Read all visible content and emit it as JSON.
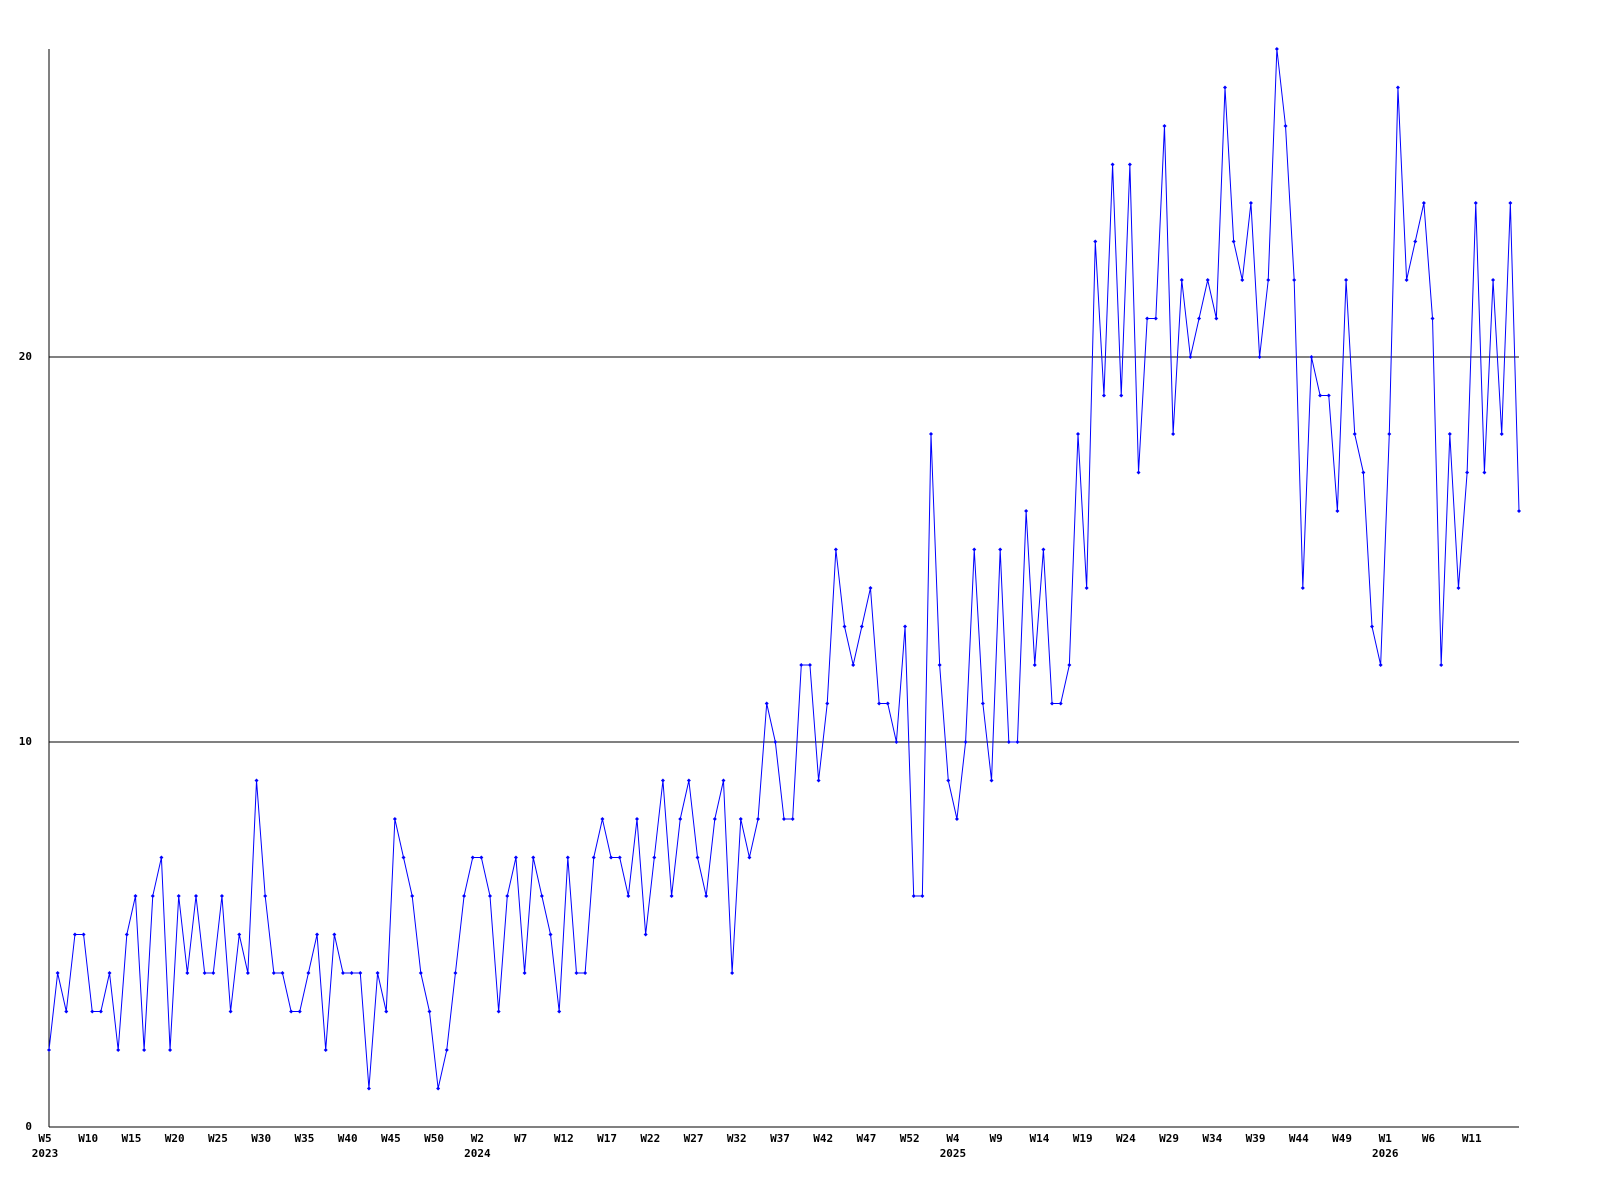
{
  "chart_data": {
    "type": "line",
    "color": "#0000ff",
    "ylim": [
      0,
      28
    ],
    "yticks": [
      0,
      10,
      20
    ],
    "grid": true,
    "categories": [
      "W5",
      null,
      null,
      null,
      null,
      "W10",
      null,
      null,
      null,
      null,
      "W15",
      null,
      null,
      null,
      null,
      "W20",
      null,
      null,
      null,
      null,
      "W25",
      null,
      null,
      null,
      null,
      "W30",
      null,
      null,
      null,
      null,
      "W35",
      null,
      null,
      null,
      null,
      "W40",
      null,
      null,
      null,
      null,
      "W45",
      null,
      null,
      null,
      null,
      "W50",
      null,
      null,
      null,
      null,
      "W2",
      null,
      null,
      null,
      null,
      "W7",
      null,
      null,
      null,
      null,
      "W12",
      null,
      null,
      null,
      null,
      "W17",
      null,
      null,
      null,
      null,
      "W22",
      null,
      null,
      null,
      null,
      "W27",
      null,
      null,
      null,
      null,
      "W32",
      null,
      null,
      null,
      null,
      "W37",
      null,
      null,
      null,
      null,
      "W42",
      null,
      null,
      null,
      null,
      "W47",
      null,
      null,
      null,
      null,
      "W52",
      null,
      null,
      null,
      null,
      "W4",
      null,
      null,
      null,
      null,
      "W9",
      null,
      null,
      null,
      null,
      "W14",
      null,
      null,
      null,
      null,
      "W19",
      null,
      null,
      null,
      null,
      "W24",
      null,
      null,
      null,
      null,
      "W29",
      null,
      null,
      null,
      null,
      "W34",
      null,
      null,
      null,
      null,
      "W39",
      null,
      null,
      null,
      null,
      "W44",
      null,
      null,
      null,
      null,
      "W49",
      null,
      null,
      null,
      null,
      "W1",
      null,
      null,
      null,
      null,
      "W6",
      null,
      null,
      null,
      null,
      "W11",
      null,
      null,
      null,
      null,
      null
    ],
    "category_years": [
      "2023",
      null,
      null,
      null,
      null,
      null,
      null,
      null,
      null,
      null,
      null,
      null,
      null,
      null,
      null,
      null,
      null,
      null,
      null,
      null,
      null,
      null,
      null,
      null,
      null,
      null,
      null,
      null,
      null,
      null,
      null,
      null,
      null,
      null,
      null,
      null,
      null,
      null,
      null,
      null,
      null,
      null,
      null,
      null,
      null,
      null,
      null,
      null,
      null,
      null,
      "2024",
      null,
      null,
      null,
      null,
      null,
      null,
      null,
      null,
      null,
      null,
      null,
      null,
      null,
      null,
      null,
      null,
      null,
      null,
      null,
      null,
      null,
      null,
      null,
      null,
      null,
      null,
      null,
      null,
      null,
      null,
      null,
      null,
      null,
      null,
      null,
      null,
      null,
      null,
      null,
      null,
      null,
      null,
      null,
      null,
      null,
      null,
      null,
      null,
      null,
      null,
      null,
      null,
      null,
      null,
      "2025",
      null,
      null,
      null,
      null,
      null,
      null,
      null,
      null,
      null,
      null,
      null,
      null,
      null,
      null,
      null,
      null,
      null,
      null,
      null,
      null,
      null,
      null,
      null,
      null,
      null,
      null,
      null,
      null,
      null,
      null,
      null,
      null,
      null,
      null,
      null,
      null,
      null,
      null,
      null,
      null,
      null,
      null,
      null,
      null,
      null,
      null,
      null,
      null,
      null,
      "2026",
      null,
      null,
      null,
      null,
      null,
      null,
      null,
      null,
      null,
      null,
      null,
      null,
      null,
      null,
      null
    ],
    "values": [
      2,
      4,
      3,
      5,
      5,
      3,
      3,
      4,
      2,
      5,
      6,
      2,
      6,
      7,
      2,
      6,
      4,
      6,
      4,
      4,
      6,
      3,
      5,
      4,
      9,
      6,
      4,
      4,
      3,
      3,
      4,
      5,
      2,
      5,
      4,
      4,
      4,
      1,
      4,
      3,
      8,
      7,
      6,
      4,
      3,
      1,
      2,
      4,
      6,
      7,
      7,
      6,
      3,
      6,
      7,
      4,
      7,
      6,
      5,
      3,
      7,
      4,
      4,
      7,
      8,
      7,
      7,
      6,
      8,
      5,
      7,
      9,
      6,
      8,
      9,
      7,
      6,
      8,
      9,
      4,
      8,
      7,
      8,
      11,
      10,
      8,
      8,
      12,
      12,
      9,
      11,
      15,
      13,
      12,
      13,
      14,
      11,
      11,
      10,
      13,
      6,
      6,
      18,
      12,
      9,
      8,
      10,
      15,
      11,
      9,
      15,
      10,
      10,
      16,
      12,
      15,
      11,
      11,
      12,
      18,
      14,
      23,
      19,
      25,
      19,
      25,
      17,
      21,
      21,
      26,
      18,
      22,
      20,
      21,
      22,
      21,
      27,
      23,
      22,
      24,
      20,
      22,
      28,
      26,
      22,
      14,
      20,
      19,
      19,
      16,
      22,
      18,
      17,
      13,
      12,
      18,
      27,
      22,
      23,
      24,
      21,
      12,
      18,
      14,
      17,
      24,
      17,
      22,
      18,
      24,
      16
    ]
  }
}
